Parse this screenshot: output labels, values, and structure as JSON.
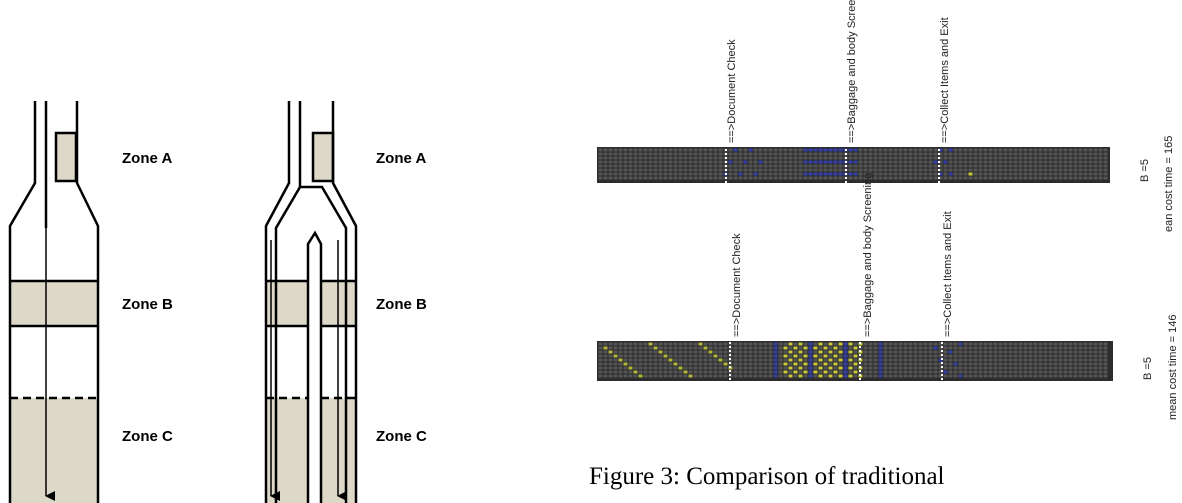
{
  "left_diagram": {
    "zones": [
      "Zone A",
      "Zone B",
      "Zone C"
    ]
  },
  "right_diagram": {
    "zones": [
      "Zone A",
      "Zone B",
      "Zone C"
    ]
  },
  "heatmap_top": {
    "markers": [
      "==>Document Check",
      "==>Baggage and body Screening",
      "==>Collect Items and Exit"
    ],
    "side_label": "B =5",
    "cost_label": "ean cost time = 165"
  },
  "heatmap_bottom": {
    "markers": [
      "==>Document Check",
      "==>Baggage and body Screening",
      "==>Collect Items and Exit"
    ],
    "side_label": "B =5",
    "cost_label": "mean cost time = 146"
  },
  "caption": "Figure 3: Comparison of  traditional"
}
